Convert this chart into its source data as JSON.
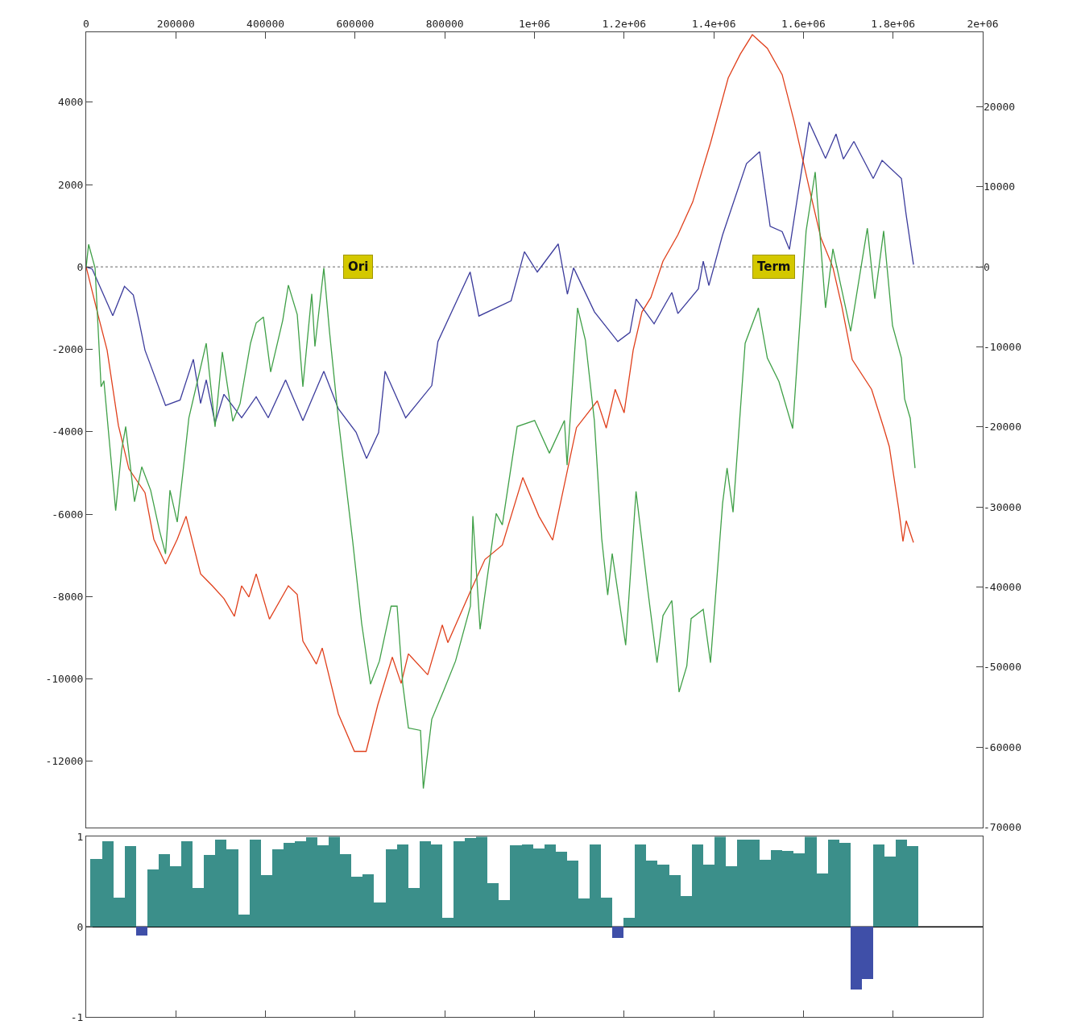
{
  "chart_data": [
    {
      "type": "line",
      "xlim": [
        0,
        2000000
      ],
      "xticks": [
        0,
        200000,
        400000,
        600000,
        800000,
        {
          "value": 1000000,
          "label": "1e+06"
        },
        {
          "value": 1200000,
          "label": "1.2e+06"
        },
        {
          "value": 1400000,
          "label": "1.4e+06"
        },
        {
          "value": 1600000,
          "label": "1.6e+06"
        },
        {
          "value": 1800000,
          "label": "1.8e+06"
        },
        {
          "value": 2000000,
          "label": "2e+06"
        }
      ],
      "ylim": [
        -13600,
        5700
      ],
      "yticks": [
        -12000,
        -10000,
        -8000,
        -6000,
        -4000,
        -2000,
        0,
        2000,
        4000
      ],
      "y2lim": [
        -70000,
        29300
      ],
      "y2ticks": [
        -70000,
        -60000,
        -50000,
        -40000,
        -30000,
        -20000,
        -10000,
        0,
        10000,
        20000
      ],
      "series": [
        {
          "color": "#3c3c9c",
          "x": [
            0,
            13500,
            59300,
            85400,
            105100,
            118100,
            131200,
            177000,
            209500,
            239000,
            255200,
            267800,
            287500,
            307300,
            346800,
            379200,
            406100,
            444800,
            483400,
            530100,
            562500,
            602000,
            625400,
            652300,
            666700,
            712700,
            770900,
            784600,
            856500,
            876000,
            947900,
            977600,
            1006300,
            1053000,
            1073500,
            1087200,
            1133900,
            1186000,
            1213000,
            1226700,
            1266900,
            1306500,
            1319900,
            1365700,
            1376500,
            1389100,
            1419700,
            1473000,
            1502300,
            1525700,
            1552600,
            1568800,
            1612600,
            1649300,
            1672700,
            1689200,
            1712600,
            1755700,
            1775500,
            1818600,
            1829000,
            1845500
          ],
          "values": [
            0,
            -50,
            -1180,
            -470,
            -680,
            -1320,
            -2020,
            -3360,
            -3230,
            -2240,
            -3310,
            -2740,
            -3790,
            -3090,
            -3660,
            -3150,
            -3660,
            -2740,
            -3730,
            -2530,
            -3440,
            -4010,
            -4650,
            -4020,
            -2530,
            -3660,
            -2880,
            -1810,
            -120,
            -1190,
            -820,
            370,
            -120,
            560,
            -660,
            -20,
            -1090,
            -1810,
            -1590,
            -780,
            -1380,
            -620,
            -1130,
            -530,
            140,
            -450,
            780,
            2510,
            2800,
            990,
            860,
            430,
            3520,
            2640,
            3230,
            2620,
            3050,
            2150,
            2590,
            2150,
            1280,
            60
          ]
        },
        {
          "color": "#e0401c",
          "x": [
            0,
            27000,
            46700,
            71900,
            95200,
            131200,
            150900,
            177000,
            203100,
            222800,
            255200,
            281400,
            307300,
            330600,
            346800,
            363000,
            379200,
            408800,
            451000,
            470800,
            483400,
            513400,
            526500,
            562500,
            598400,
            624500,
            650500,
            682900,
            702600,
            718800,
            761900,
            794300,
            806900,
            857200,
            889500,
            928300,
            974000,
            1009900,
            1040500,
            1093700,
            1140200,
            1160100,
            1180100,
            1200000,
            1220200,
            1239900,
            1259700,
            1286600,
            1319900,
            1353100,
            1392700,
            1432200,
            1459200,
            1486100,
            1519500,
            1552600,
            1579600,
            1612600,
            1638900,
            1665800,
            1685600,
            1708900,
            1752100,
            1779000,
            1791600,
            1812500,
            1822100,
            1829300,
            1845500
          ],
          "values": [
            0,
            -1190,
            -2020,
            -3850,
            -4900,
            -5480,
            -6610,
            -7210,
            -6610,
            -6050,
            -7450,
            -7740,
            -8050,
            -8480,
            -7740,
            -8010,
            -7450,
            -8550,
            -7740,
            -7950,
            -9080,
            -9640,
            -9250,
            -10850,
            -11760,
            -11760,
            -10630,
            -9470,
            -10110,
            -9390,
            -9900,
            -8690,
            -9120,
            -7870,
            -7100,
            -6750,
            -5110,
            -6050,
            -6630,
            -3900,
            -3250,
            -3910,
            -2970,
            -3540,
            -2020,
            -1090,
            -740,
            140,
            780,
            1580,
            3010,
            4590,
            5170,
            5640,
            5310,
            4670,
            3520,
            1930,
            710,
            -10,
            -950,
            -2250,
            -2970,
            -3900,
            -4360,
            -5870,
            -6660,
            -6160,
            -6690
          ]
        },
        {
          "color": "#40a048",
          "axis": "y2",
          "x": [
            0,
            5400,
            19800,
            33200,
            39500,
            49400,
            65800,
            79100,
            88100,
            107800,
            124000,
            143800,
            163500,
            177000,
            186900,
            203100,
            215600,
            229100,
            267800,
            287500,
            303700,
            327100,
            343200,
            366600,
            379200,
            395300,
            411500,
            438500,
            451000,
            470800,
            483400,
            503200,
            510300,
            530100,
            542700,
            562500,
            575000,
            594800,
            614600,
            634300,
            654100,
            680200,
            693600,
            706200,
            718800,
            745800,
            752100,
            770900,
            797900,
            823900,
            857200,
            862600,
            878700,
            914700,
            928300,
            961400,
            1000400,
            1033300,
            1066900,
            1072800,
            1096200,
            1113600,
            1133600,
            1150100,
            1163400,
            1173400,
            1203500,
            1226600,
            1252500,
            1273400,
            1286700,
            1306500,
            1322600,
            1339900,
            1349500,
            1376500,
            1392700,
            1419700,
            1429700,
            1443000,
            1470000,
            1499600,
            1519500,
            1545400,
            1576000,
            1606000,
            1626300,
            1649300,
            1665800,
            1685600,
            1705400,
            1742600,
            1759300,
            1779000,
            1798800,
            1818600,
            1825800,
            1838300,
            1849000
          ],
          "values": [
            0,
            2800,
            -150,
            -14980,
            -14230,
            -20400,
            -30450,
            -22890,
            -19950,
            -29350,
            -24980,
            -27910,
            -32940,
            -35870,
            -27910,
            -31890,
            -25770,
            -18870,
            -9550,
            -20000,
            -10650,
            -19300,
            -17110,
            -9550,
            -7020,
            -6270,
            -13130,
            -6670,
            -2290,
            -5970,
            -14980,
            -3380,
            -9950,
            -150,
            -8060,
            -19010,
            -25020,
            -34430,
            -44580,
            -52140,
            -49250,
            -42390,
            -42390,
            -52140,
            -57610,
            -57910,
            -65170,
            -56520,
            -52880,
            -49250,
            -42390,
            -31140,
            -45270,
            -30810,
            -32240,
            -19950,
            -19200,
            -23280,
            -19200,
            -24780,
            -5130,
            -9150,
            -19200,
            -33990,
            -40990,
            -35820,
            -47260,
            -28060,
            -40250,
            -49450,
            -43580,
            -41690,
            -53130,
            -49850,
            -43940,
            -42790,
            -49450,
            -29550,
            -25140,
            -30650,
            -9550,
            -5130,
            -11390,
            -14330,
            -20200,
            4480,
            11840,
            -5130,
            2240,
            -2890,
            -8060,
            4820,
            -3980,
            4480,
            -7360,
            -11390,
            -16520,
            -18910,
            -25140
          ]
        }
      ],
      "ref_lines": [
        {
          "axis": "y",
          "value": 0,
          "color": "#999999",
          "line_style": "dotted"
        }
      ],
      "annotations": [
        {
          "text": "Ori",
          "x": 607000,
          "y": 0
        },
        {
          "text": "Term",
          "x": 1533000,
          "y": 0
        }
      ]
    },
    {
      "type": "bar",
      "xlim": [
        0,
        2000000
      ],
      "xticks": [
        {
          "value": 200000,
          "label": null
        },
        {
          "value": 400000,
          "label": null
        },
        {
          "value": 600000,
          "label": null
        },
        {
          "value": 800000,
          "label": null
        },
        {
          "value": 1000000,
          "label": null
        },
        {
          "value": 1200000,
          "label": null
        },
        {
          "value": 1400000,
          "label": null
        },
        {
          "value": 1600000,
          "label": null
        },
        {
          "value": 1800000,
          "label": null
        }
      ],
      "ylim": [
        -1,
        1
      ],
      "yticks": [
        -1,
        0,
        1
      ],
      "tick_labels": "y",
      "x": [
        22500,
        47800,
        73100,
        98400,
        123700,
        149000,
        174300,
        199600,
        224900,
        250200,
        275500,
        300800,
        326100,
        351400,
        376700,
        402000,
        427300,
        452600,
        477900,
        503200,
        528500,
        553800,
        579100,
        604400,
        629700,
        655000,
        680300,
        705600,
        730900,
        756200,
        781500,
        806800,
        832100,
        857400,
        882700,
        908000,
        933300,
        958600,
        983900,
        1009200,
        1034500,
        1059800,
        1085100,
        1110400,
        1135700,
        1161000,
        1186300,
        1211600,
        1236900,
        1262200,
        1287500,
        1312800,
        1338100,
        1363400,
        1388700,
        1414000,
        1439300,
        1464600,
        1489900,
        1515200,
        1540500,
        1565800,
        1591100,
        1616400,
        1641700,
        1667000,
        1692300,
        1717600,
        1742900,
        1768200,
        1793500,
        1818800,
        1844100
      ],
      "values": [
        0.75,
        0.95,
        0.32,
        0.89,
        -0.1,
        0.63,
        0.8,
        0.67,
        0.95,
        0.43,
        0.79,
        0.96,
        0.86,
        0.13,
        0.96,
        0.57,
        0.86,
        0.93,
        0.95,
        0.99,
        0.9,
        1.0,
        0.8,
        0.55,
        0.58,
        0.27,
        0.86,
        0.91,
        0.43,
        0.95,
        0.91,
        0.1,
        0.95,
        0.98,
        1.0,
        0.48,
        0.29,
        0.9,
        0.91,
        0.87,
        0.91,
        0.83,
        0.73,
        0.31,
        0.91,
        0.32,
        -0.13,
        0.1,
        0.91,
        0.73,
        0.69,
        0.57,
        0.34,
        0.91,
        0.69,
        1.0,
        0.67,
        0.96,
        0.96,
        0.74,
        0.85,
        0.84,
        0.81,
        1.0,
        0.59,
        0.96,
        0.93,
        -0.7,
        -0.58,
        0.91,
        0.78,
        0.96,
        0.89
      ],
      "colors": [
        "#3b8f8a",
        "#3b8f8a",
        "#3b8f8a",
        "#3b8f8a",
        "#3f4fa8",
        "#3b8f8a",
        "#3b8f8a",
        "#3b8f8a",
        "#3b8f8a",
        "#3b8f8a",
        "#3b8f8a",
        "#3b8f8a",
        "#3b8f8a",
        "#3b8f8a",
        "#3b8f8a",
        "#3b8f8a",
        "#3b8f8a",
        "#3b8f8a",
        "#3b8f8a",
        "#3b8f8a",
        "#3b8f8a",
        "#3b8f8a",
        "#3b8f8a",
        "#3b8f8a",
        "#3b8f8a",
        "#3b8f8a",
        "#3b8f8a",
        "#3b8f8a",
        "#3b8f8a",
        "#3b8f8a",
        "#3b8f8a",
        "#3b8f8a",
        "#3b8f8a",
        "#3b8f8a",
        "#3b8f8a",
        "#3b8f8a",
        "#3b8f8a",
        "#3b8f8a",
        "#3b8f8a",
        "#3b8f8a",
        "#3b8f8a",
        "#3b8f8a",
        "#3b8f8a",
        "#3b8f8a",
        "#3b8f8a",
        "#3b8f8a",
        "#3f4fa8",
        "#3b8f8a",
        "#3b8f8a",
        "#3b8f8a",
        "#3b8f8a",
        "#3b8f8a",
        "#3b8f8a",
        "#3b8f8a",
        "#3b8f8a",
        "#3b8f8a",
        "#3b8f8a",
        "#3b8f8a",
        "#3b8f8a",
        "#3b8f8a",
        "#3b8f8a",
        "#3b8f8a",
        "#3b8f8a",
        "#3b8f8a",
        "#3b8f8a",
        "#3b8f8a",
        "#3b8f8a",
        "#3f4fa8",
        "#3f4fa8",
        "#3b8f8a",
        "#3b8f8a",
        "#3b8f8a",
        "#3b8f8a"
      ],
      "ref_lines": [
        {
          "axis": "y",
          "value": 0,
          "color": "#000000",
          "line_style": "solid"
        }
      ]
    }
  ]
}
